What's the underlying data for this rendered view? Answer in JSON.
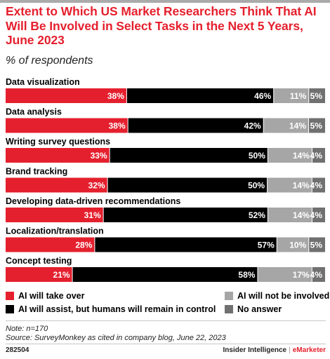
{
  "title": "Extent to Which US Market Researchers Think That AI Will Be Involved in Select Tasks in the Next 5 Years, June 2023",
  "subtitle": "% of respondents",
  "chart_data": {
    "type": "bar",
    "orientation": "horizontal",
    "stacked": true,
    "categories": [
      "Data visualization",
      "Data analysis",
      "Writing survey questions",
      "Brand tracking",
      "Developing data-driven recommendations",
      "Localization/translation",
      "Concept testing"
    ],
    "series": [
      {
        "name": "AI will take over",
        "color": "#e5202e",
        "label_color": "#ffffff",
        "values": [
          38,
          38,
          33,
          32,
          31,
          28,
          21
        ]
      },
      {
        "name": "AI will assist, but humans will remain in control",
        "color": "#000000",
        "label_color": "#ffffff",
        "values": [
          46,
          42,
          50,
          50,
          52,
          57,
          58
        ]
      },
      {
        "name": "AI will not be involved",
        "color": "#a6a6a6",
        "label_color": "#ffffff",
        "values": [
          11,
          14,
          14,
          14,
          14,
          10,
          17
        ]
      },
      {
        "name": "No answer",
        "color": "#707070",
        "label_color": "#ffffff",
        "values": [
          5,
          5,
          4,
          4,
          4,
          5,
          4
        ]
      }
    ],
    "value_suffix": "%"
  },
  "legend": {
    "takeover": "AI will take over",
    "assist": "AI will assist, but humans will remain in control",
    "not_involved": "AI will not be involved",
    "no_answer": "No answer"
  },
  "note": "Note: n=170",
  "source": "Source: SurveyMonkey as cited in company blog, June 22, 2023",
  "footer": {
    "id": "282504",
    "brand": "Insider Intelligence",
    "separator": "|",
    "brand2": "eMarketer"
  }
}
